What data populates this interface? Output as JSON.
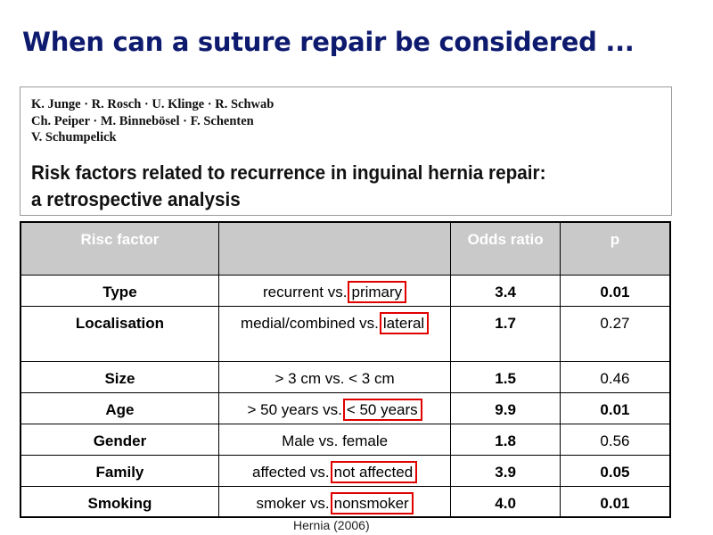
{
  "slide": {
    "title": "When can a suture repair be considered ..."
  },
  "citation": {
    "authors_line1": "K. Junge · R. Rosch · U. Klinge · R. Schwab",
    "authors_line2": "Ch. Peiper · M. Binnebösel · F. Schenten",
    "authors_line3": "V. Schumpelick",
    "title_line1": "Risk factors related to recurrence in inguinal hernia repair:",
    "title_line2": "a retrospective analysis"
  },
  "table": {
    "headers": {
      "factor": "Risc factor",
      "comparison": "",
      "odds_ratio": "Odds ratio",
      "p": "p"
    },
    "rows": [
      {
        "factor": "Type",
        "comparison_prefix": "recurrent vs.",
        "comparison_highlight": "primary",
        "odds_ratio": "3.4",
        "p": "0.01",
        "p_bold": true
      },
      {
        "factor": "Localisation",
        "comparison_prefix": "medial/combined vs.",
        "comparison_highlight": "lateral",
        "odds_ratio": "1.7",
        "p": "0.27",
        "p_bold": false
      },
      {
        "factor": "Size",
        "comparison_prefix": "> 3 cm vs. < 3 cm",
        "comparison_highlight": "",
        "odds_ratio": "1.5",
        "p": "0.46",
        "p_bold": false
      },
      {
        "factor": "Age",
        "comparison_prefix": "> 50 years vs.",
        "comparison_highlight": "< 50 years",
        "odds_ratio": "9.9",
        "p": "0.01",
        "p_bold": true
      },
      {
        "factor": "Gender",
        "comparison_prefix": "Male vs. female",
        "comparison_highlight": "",
        "odds_ratio": "1.8",
        "p": "0.56",
        "p_bold": false
      },
      {
        "factor": "Family",
        "comparison_prefix": "affected vs.",
        "comparison_highlight": "not affected",
        "odds_ratio": "3.9",
        "p": "0.05",
        "p_bold": true
      },
      {
        "factor": "Smoking",
        "comparison_prefix": "smoker vs.",
        "comparison_highlight": "nonsmoker",
        "odds_ratio": "4.0",
        "p": "0.01",
        "p_bold": true
      }
    ]
  },
  "source": "Hernia (2006)",
  "colors": {
    "title": "#0d1a6e",
    "highlight_border": "#e00000",
    "header_bg": "#c9c9c9"
  }
}
